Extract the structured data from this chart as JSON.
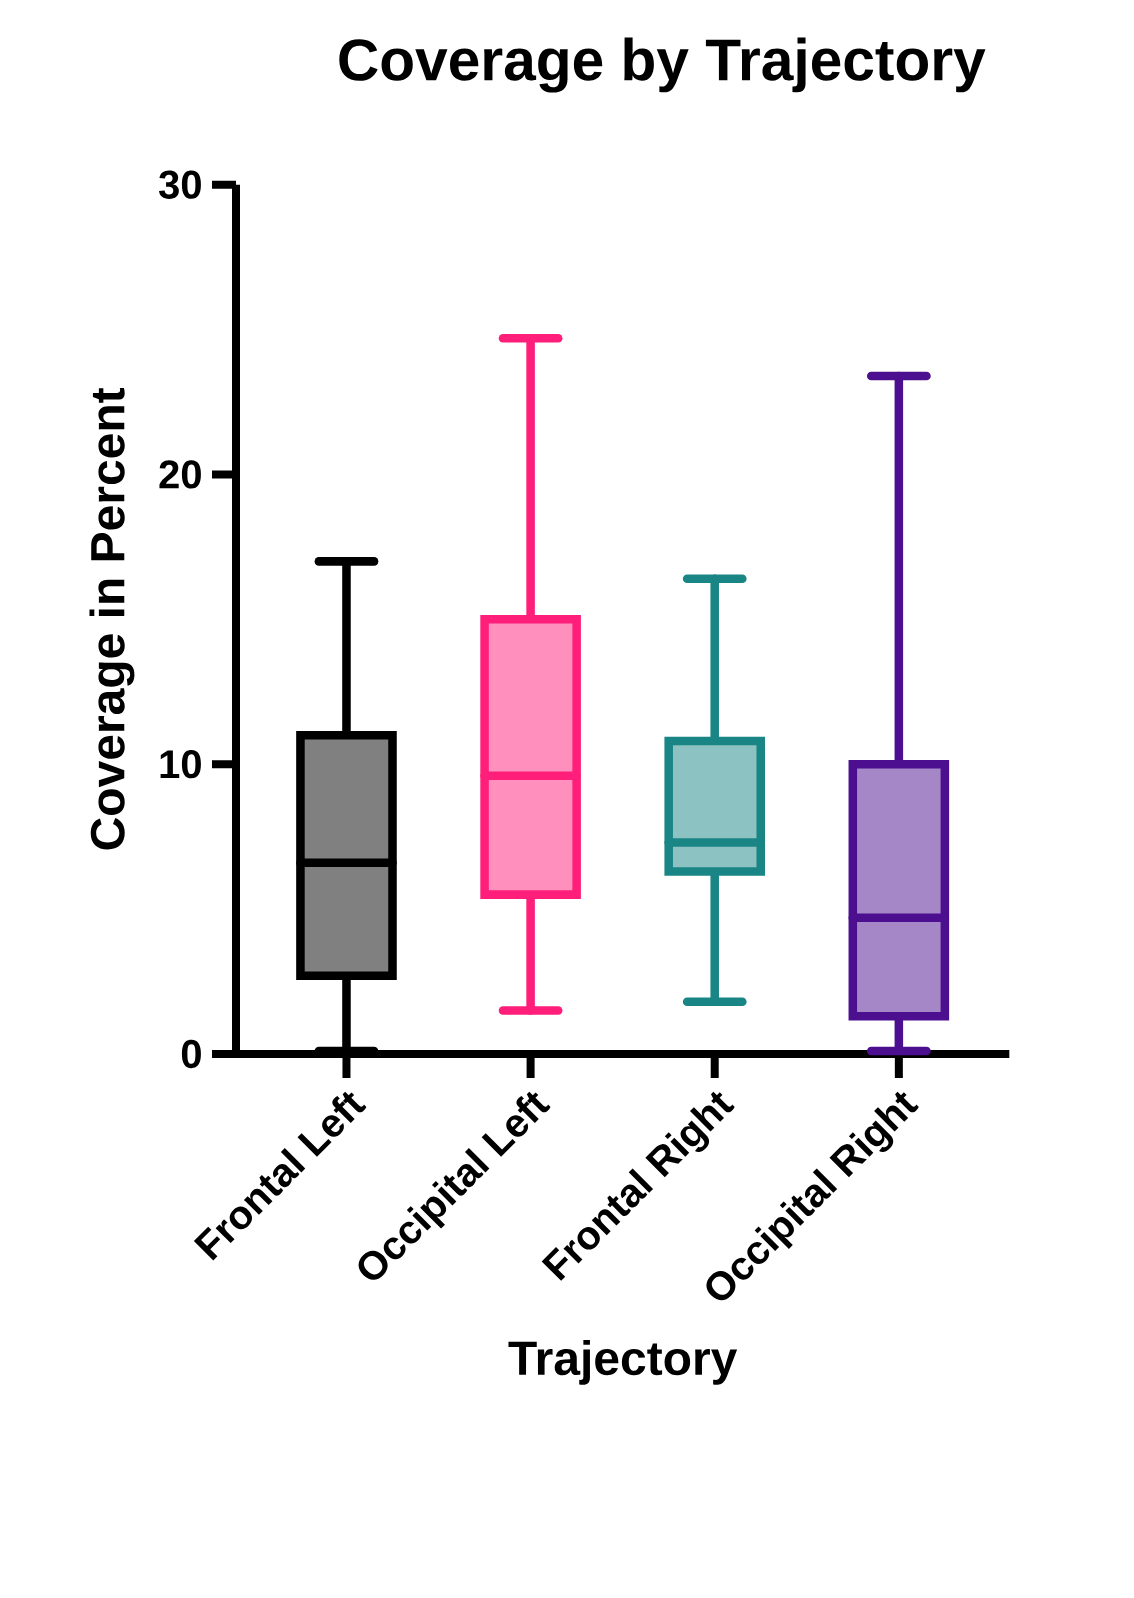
{
  "chart_data": {
    "type": "box",
    "title": "Coverage by Trajectory",
    "xlabel": "Trajectory",
    "ylabel": "Coverage in Percent",
    "categories": [
      "Frontal Left",
      "Occipital Left",
      "Frontal Right",
      "Occipital Right"
    ],
    "boxes": [
      {
        "low": 0.1,
        "q1": 2.7,
        "median": 6.6,
        "q3": 11.0,
        "high": 17.0
      },
      {
        "low": 1.5,
        "q1": 5.5,
        "median": 9.6,
        "q3": 15.0,
        "high": 24.7
      },
      {
        "low": 1.8,
        "q1": 6.3,
        "median": 7.3,
        "q3": 10.8,
        "high": 16.4
      },
      {
        "low": 0.1,
        "q1": 1.3,
        "median": 4.7,
        "q3": 10.0,
        "high": 23.4
      }
    ],
    "colors": [
      "#000000",
      "#ff1f7a",
      "#1a8585",
      "#4b0f8f"
    ],
    "ylim": [
      0,
      30
    ],
    "yticks": [
      0,
      10,
      20,
      30
    ]
  }
}
